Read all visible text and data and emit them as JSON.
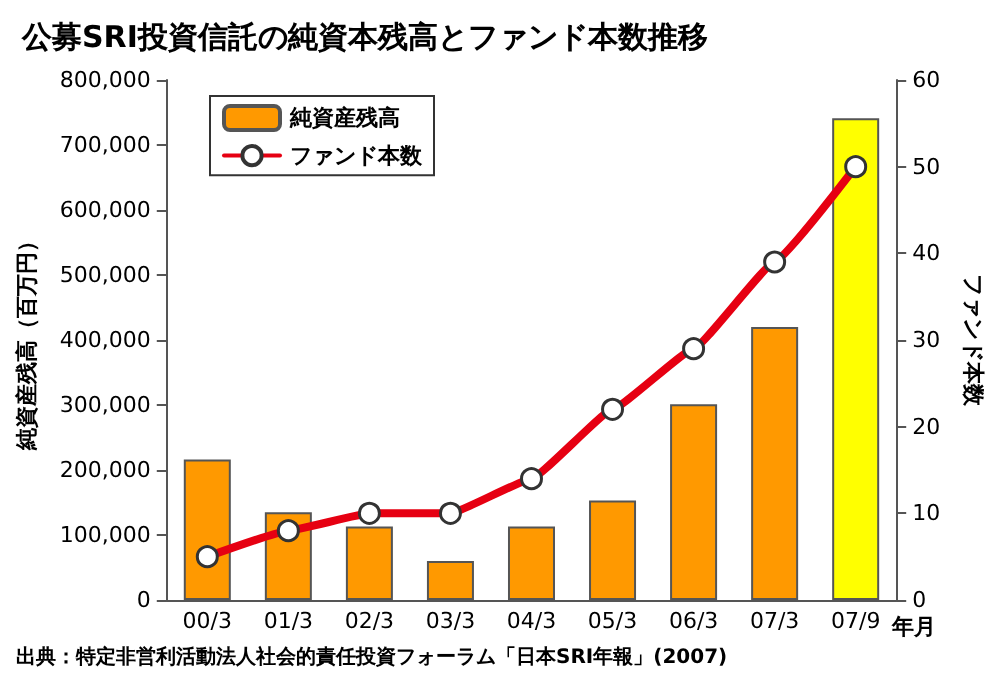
{
  "chart_data": {
    "type": "bar",
    "title": "公募SRI投資信託の純資本残高とファンド本数推移",
    "categories": [
      "00/3",
      "01/3",
      "02/3",
      "03/3",
      "04/3",
      "05/3",
      "06/3",
      "07/3",
      "07/9"
    ],
    "xlabel": "年月",
    "ylabel": "純資産残高（百万円）",
    "y2label": "ファンド本数",
    "series": [
      {
        "name": "純資産残高",
        "colors": [
          "#ff9900",
          "#ff9900",
          "#ff9900",
          "#ff9900",
          "#ff9900",
          "#ff9900",
          "#ff9900",
          "#ff9900",
          "#ffff00"
        ],
        "values": [
          216000,
          135000,
          113000,
          60000,
          113000,
          153000,
          301000,
          420000,
          741000
        ]
      },
      {
        "name": "ファンド本数",
        "type": "line",
        "axis": "y2",
        "color": "#e60012",
        "values": [
          5,
          8,
          10,
          10,
          14,
          22,
          29,
          39,
          50
        ]
      }
    ],
    "ylim": [
      0,
      800000
    ],
    "yticks": [
      0,
      {
        "value": 100000,
        "label": "100,000"
      },
      {
        "value": 200000,
        "label": "200,000"
      },
      {
        "value": 300000,
        "label": "300,000"
      },
      {
        "value": 400000,
        "label": "400,000"
      },
      {
        "value": 500000,
        "label": "500,000"
      },
      {
        "value": 600000,
        "label": "600,000"
      },
      {
        "value": 700000,
        "label": "700,000"
      },
      {
        "value": 800000,
        "label": "800,000"
      }
    ],
    "y2lim": [
      0,
      60
    ],
    "y2ticks": [
      0,
      10,
      20,
      30,
      40,
      50,
      60
    ],
    "marker": "circle",
    "line_style": "solid",
    "grid": false,
    "legend": "top left",
    "annotations": [
      "出典：特定非営利活動法人社会的責任投資フォーラム「日本SRI年報」(2007)"
    ]
  }
}
